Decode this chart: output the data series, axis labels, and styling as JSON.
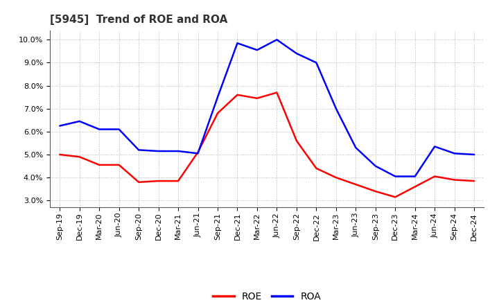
{
  "title": "[5945]  Trend of ROE and ROA",
  "x_labels": [
    "Sep-19",
    "Dec-19",
    "Mar-20",
    "Jun-20",
    "Sep-20",
    "Dec-20",
    "Mar-21",
    "Jun-21",
    "Sep-21",
    "Dec-21",
    "Mar-22",
    "Jun-22",
    "Sep-22",
    "Dec-22",
    "Mar-23",
    "Jun-23",
    "Sep-23",
    "Dec-23",
    "Mar-24",
    "Jun-24",
    "Sep-24",
    "Dec-24"
  ],
  "ROE_vals": [
    5.0,
    4.9,
    4.55,
    4.55,
    3.8,
    3.85,
    3.85,
    5.1,
    6.8,
    7.6,
    7.45,
    7.7,
    5.6,
    4.4,
    4.0,
    3.7,
    3.4,
    3.15,
    3.6,
    4.05,
    3.9,
    3.85
  ],
  "ROA_vals": [
    6.25,
    6.45,
    6.1,
    6.1,
    5.2,
    5.15,
    5.15,
    5.05,
    7.5,
    9.85,
    9.55,
    10.0,
    9.4,
    9.0,
    7.0,
    5.3,
    4.5,
    4.05,
    4.05,
    5.35,
    5.05,
    5.0
  ],
  "ylim": [
    2.7,
    10.4
  ],
  "yticks": [
    3.0,
    4.0,
    5.0,
    6.0,
    7.0,
    8.0,
    9.0,
    10.0
  ],
  "roe_color": "#ff0000",
  "roa_color": "#0000ff",
  "background_color": "#ffffff",
  "grid_color": "#b0b0b0",
  "title_fontsize": 11,
  "axis_fontsize": 8,
  "legend_fontsize": 10
}
